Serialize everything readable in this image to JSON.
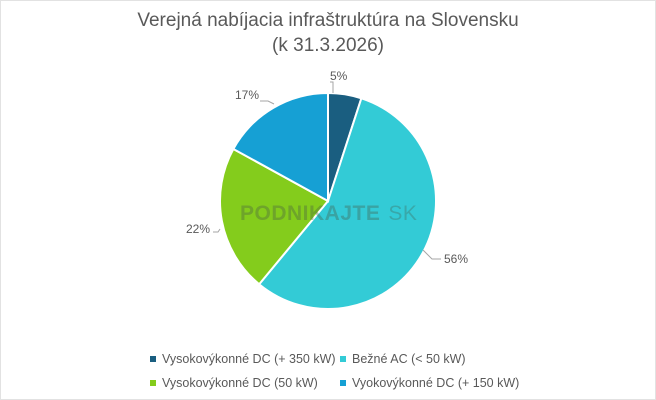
{
  "chart_data": {
    "type": "pie",
    "title": "Verejná nabíjacia infraštruktúra na Slovensku",
    "subtitle": "(k 31.3.2026)",
    "categories": [
      "Vysokovýkonné DC (+ 350 kW)",
      "Bežné AC (< 50 kW)",
      "Vysokovýkonné DC (50 kW)",
      "Vyokovýkonné DC (+ 150 kW)"
    ],
    "values": [
      5,
      56,
      22,
      17
    ],
    "unit": "%",
    "data_labels": [
      "5%",
      "56%",
      "22%",
      "17%"
    ],
    "colors": [
      "#1a5e80",
      "#33cbd6",
      "#84cc1c",
      "#16a0d4"
    ],
    "start_angle_deg": 0,
    "direction": "clockwise",
    "legend_position": "bottom"
  },
  "title": {
    "line1": "Verejná nabíjacia infraštruktúra na Slovensku",
    "line2": "(k 31.3.2026)"
  },
  "labels": {
    "s0": "5%",
    "s1": "56%",
    "s2": "22%",
    "s3": "17%"
  },
  "legend": {
    "items": [
      {
        "label": "Vysokovýkonné DC (+ 350 kW)",
        "color": "#1a5e80"
      },
      {
        "label": "Bežné AC (< 50 kW)",
        "color": "#33cbd6"
      },
      {
        "label": "Vysokovýkonné DC (50 kW)",
        "color": "#84cc1c"
      },
      {
        "label": "Vyokovýkonné DC (+ 150 kW)",
        "color": "#16a0d4"
      }
    ]
  },
  "watermark": {
    "main": "PODNIKAJTE",
    "suffix": "SK"
  }
}
